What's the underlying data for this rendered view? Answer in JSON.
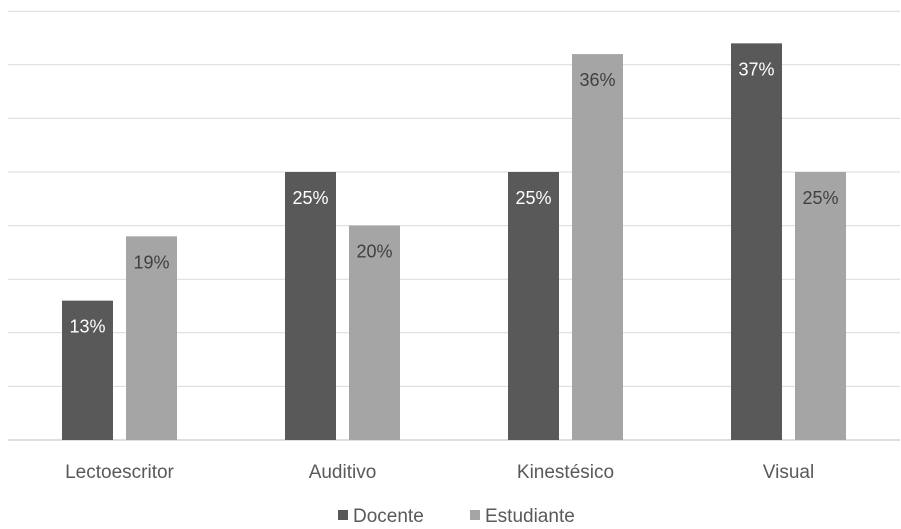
{
  "chart_data": {
    "type": "bar",
    "categories": [
      "Lectoescritor",
      "Auditivo",
      "Kinestésico",
      "Visual"
    ],
    "series": [
      {
        "name": "Docente",
        "values": [
          13,
          25,
          25,
          37
        ],
        "labels": [
          "13%",
          "25%",
          "25%",
          "37%"
        ],
        "color": "#595959"
      },
      {
        "name": "Estudiante",
        "values": [
          19,
          20,
          36,
          25
        ],
        "labels": [
          "19%",
          "20%",
          "36%",
          "25%"
        ],
        "color": "#a5a5a5"
      }
    ],
    "ylim": [
      0,
      40
    ],
    "gridlines_step": 5,
    "grid": true,
    "legend": "bottom",
    "title": "",
    "xlabel": "",
    "ylabel": ""
  }
}
